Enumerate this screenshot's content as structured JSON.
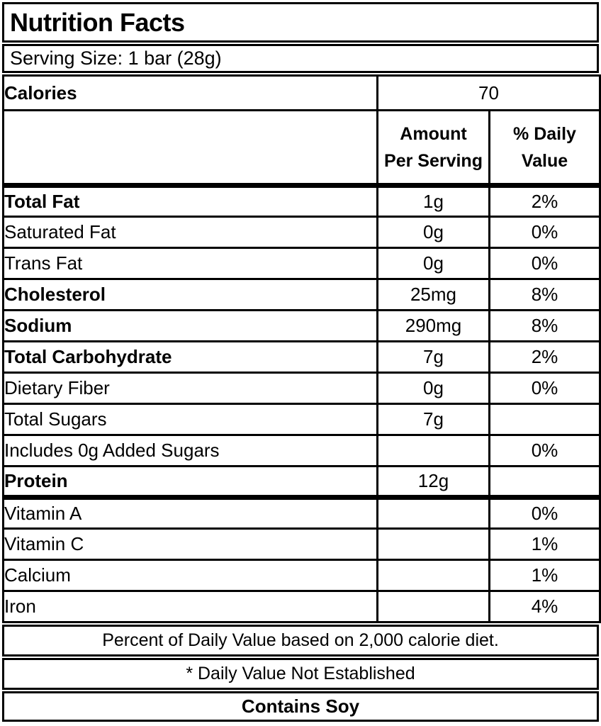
{
  "title": "Nutrition Facts",
  "serving_size": "Serving Size: 1 bar (28g)",
  "calories": {
    "label": "Calories",
    "value": "70"
  },
  "columns": {
    "amount_line1": "Amount",
    "amount_line2": "Per Serving",
    "dv_line1": "% Daily",
    "dv_line2": "Value"
  },
  "nutrients": [
    {
      "name": "Total Fat",
      "amount": "1g",
      "dv": "2%"
    },
    {
      "name": "Saturated Fat",
      "amount": "0g",
      "dv": "0%"
    },
    {
      "name": "Trans Fat",
      "amount": "0g",
      "dv": "0%"
    },
    {
      "name": "Cholesterol",
      "amount": "25mg",
      "dv": "8%"
    },
    {
      "name": "Sodium",
      "amount": "290mg",
      "dv": "8%"
    },
    {
      "name": "Total Carbohydrate",
      "amount": "7g",
      "dv": "2%"
    },
    {
      "name": "Dietary Fiber",
      "amount": "0g",
      "dv": "0%"
    },
    {
      "name": "Total Sugars",
      "amount": "7g",
      "dv": ""
    },
    {
      "name": "Includes 0g Added Sugars",
      "amount": "",
      "dv": "0%"
    },
    {
      "name": "Protein",
      "amount": "12g",
      "dv": ""
    },
    {
      "name": "Vitamin A",
      "amount": "",
      "dv": "0%"
    },
    {
      "name": "Vitamin C",
      "amount": "",
      "dv": "1%"
    },
    {
      "name": "Calcium",
      "amount": "",
      "dv": "1%"
    },
    {
      "name": "Iron",
      "amount": "",
      "dv": "4%"
    }
  ],
  "footnotes": {
    "daily_value_note": "Percent of Daily Value based on 2,000 calorie diet.",
    "not_established_note": "* Daily Value Not Established"
  },
  "allergen": "Contains Soy",
  "colors": {
    "border": "#000000",
    "background": "#ffffff",
    "text": "#000000"
  }
}
